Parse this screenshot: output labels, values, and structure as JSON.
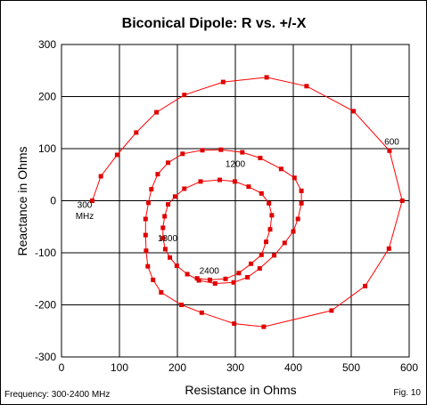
{
  "chart_data": {
    "type": "line",
    "title": "Biconical Dipole: R vs. +/-X",
    "xlabel": "Resistance in Ohms",
    "ylabel": "Reactance in Ohms",
    "xlim": [
      0,
      600
    ],
    "ylim": [
      -300,
      300
    ],
    "x_ticks": [
      "0",
      "100",
      "200",
      "300",
      "400",
      "500",
      "600"
    ],
    "y_ticks": [
      "300",
      "200",
      "100",
      "0",
      "-100",
      "-200",
      "-300"
    ],
    "grid": true,
    "footer_left": "Frequency: 300-2400 MHz",
    "footer_right": "Fig. 10",
    "annotations": [
      {
        "text": "300",
        "x": 40,
        "y": -14
      },
      {
        "text": "MHz",
        "x": 40,
        "y": -35
      },
      {
        "text": "600",
        "x": 570,
        "y": 108
      },
      {
        "text": "1200",
        "x": 300,
        "y": 65
      },
      {
        "text": "1800",
        "x": 183,
        "y": -78
      },
      {
        "text": "2400",
        "x": 255,
        "y": -140
      }
    ],
    "series": [
      {
        "color": "#ff0000",
        "marker_color": "#e00000",
        "points": [
          [
            53,
            0
          ],
          [
            68,
            47
          ],
          [
            96,
            88
          ],
          [
            129,
            131
          ],
          [
            164,
            170
          ],
          [
            212,
            203
          ],
          [
            279,
            228
          ],
          [
            354,
            237
          ],
          [
            423,
            220
          ],
          [
            504,
            172
          ],
          [
            566,
            96
          ],
          [
            588,
            0
          ],
          [
            565,
            -92
          ],
          [
            524,
            -164
          ],
          [
            466,
            -211
          ],
          [
            349,
            -242
          ],
          [
            298,
            -236
          ],
          [
            242,
            -215
          ],
          [
            207,
            -200
          ],
          [
            172,
            -176
          ],
          [
            158,
            -152
          ],
          [
            149,
            -126
          ],
          [
            146,
            -96
          ],
          [
            145,
            -66
          ],
          [
            145,
            -35
          ],
          [
            150,
            -4
          ],
          [
            155,
            22
          ],
          [
            166,
            51
          ],
          [
            184,
            73
          ],
          [
            209,
            90
          ],
          [
            243,
            97
          ],
          [
            275,
            98
          ],
          [
            312,
            93
          ],
          [
            343,
            82
          ],
          [
            379,
            61
          ],
          [
            402,
            44
          ],
          [
            414,
            19
          ],
          [
            414,
            -5
          ],
          [
            408,
            -35
          ],
          [
            400,
            -59
          ],
          [
            385,
            -81
          ],
          [
            367,
            -105
          ],
          [
            342,
            -130
          ],
          [
            321,
            -147
          ],
          [
            297,
            -157
          ],
          [
            265,
            -159
          ],
          [
            237,
            -153
          ],
          [
            217,
            -141
          ],
          [
            199,
            -125
          ],
          [
            187,
            -109
          ],
          [
            179,
            -93
          ],
          [
            175,
            -72
          ],
          [
            175,
            -52
          ],
          [
            178,
            -30
          ],
          [
            184,
            -7
          ],
          [
            196,
            8
          ],
          [
            212,
            23
          ],
          [
            240,
            37
          ],
          [
            273,
            40
          ],
          [
            299,
            37
          ],
          [
            323,
            27
          ],
          [
            345,
            14
          ],
          [
            358,
            -5
          ],
          [
            363,
            -28
          ],
          [
            360,
            -55
          ],
          [
            353,
            -79
          ],
          [
            345,
            -104
          ],
          [
            327,
            -121
          ],
          [
            306,
            -139
          ],
          [
            283,
            -150
          ],
          [
            256,
            -152
          ],
          [
            234,
            -149
          ]
        ]
      }
    ]
  }
}
